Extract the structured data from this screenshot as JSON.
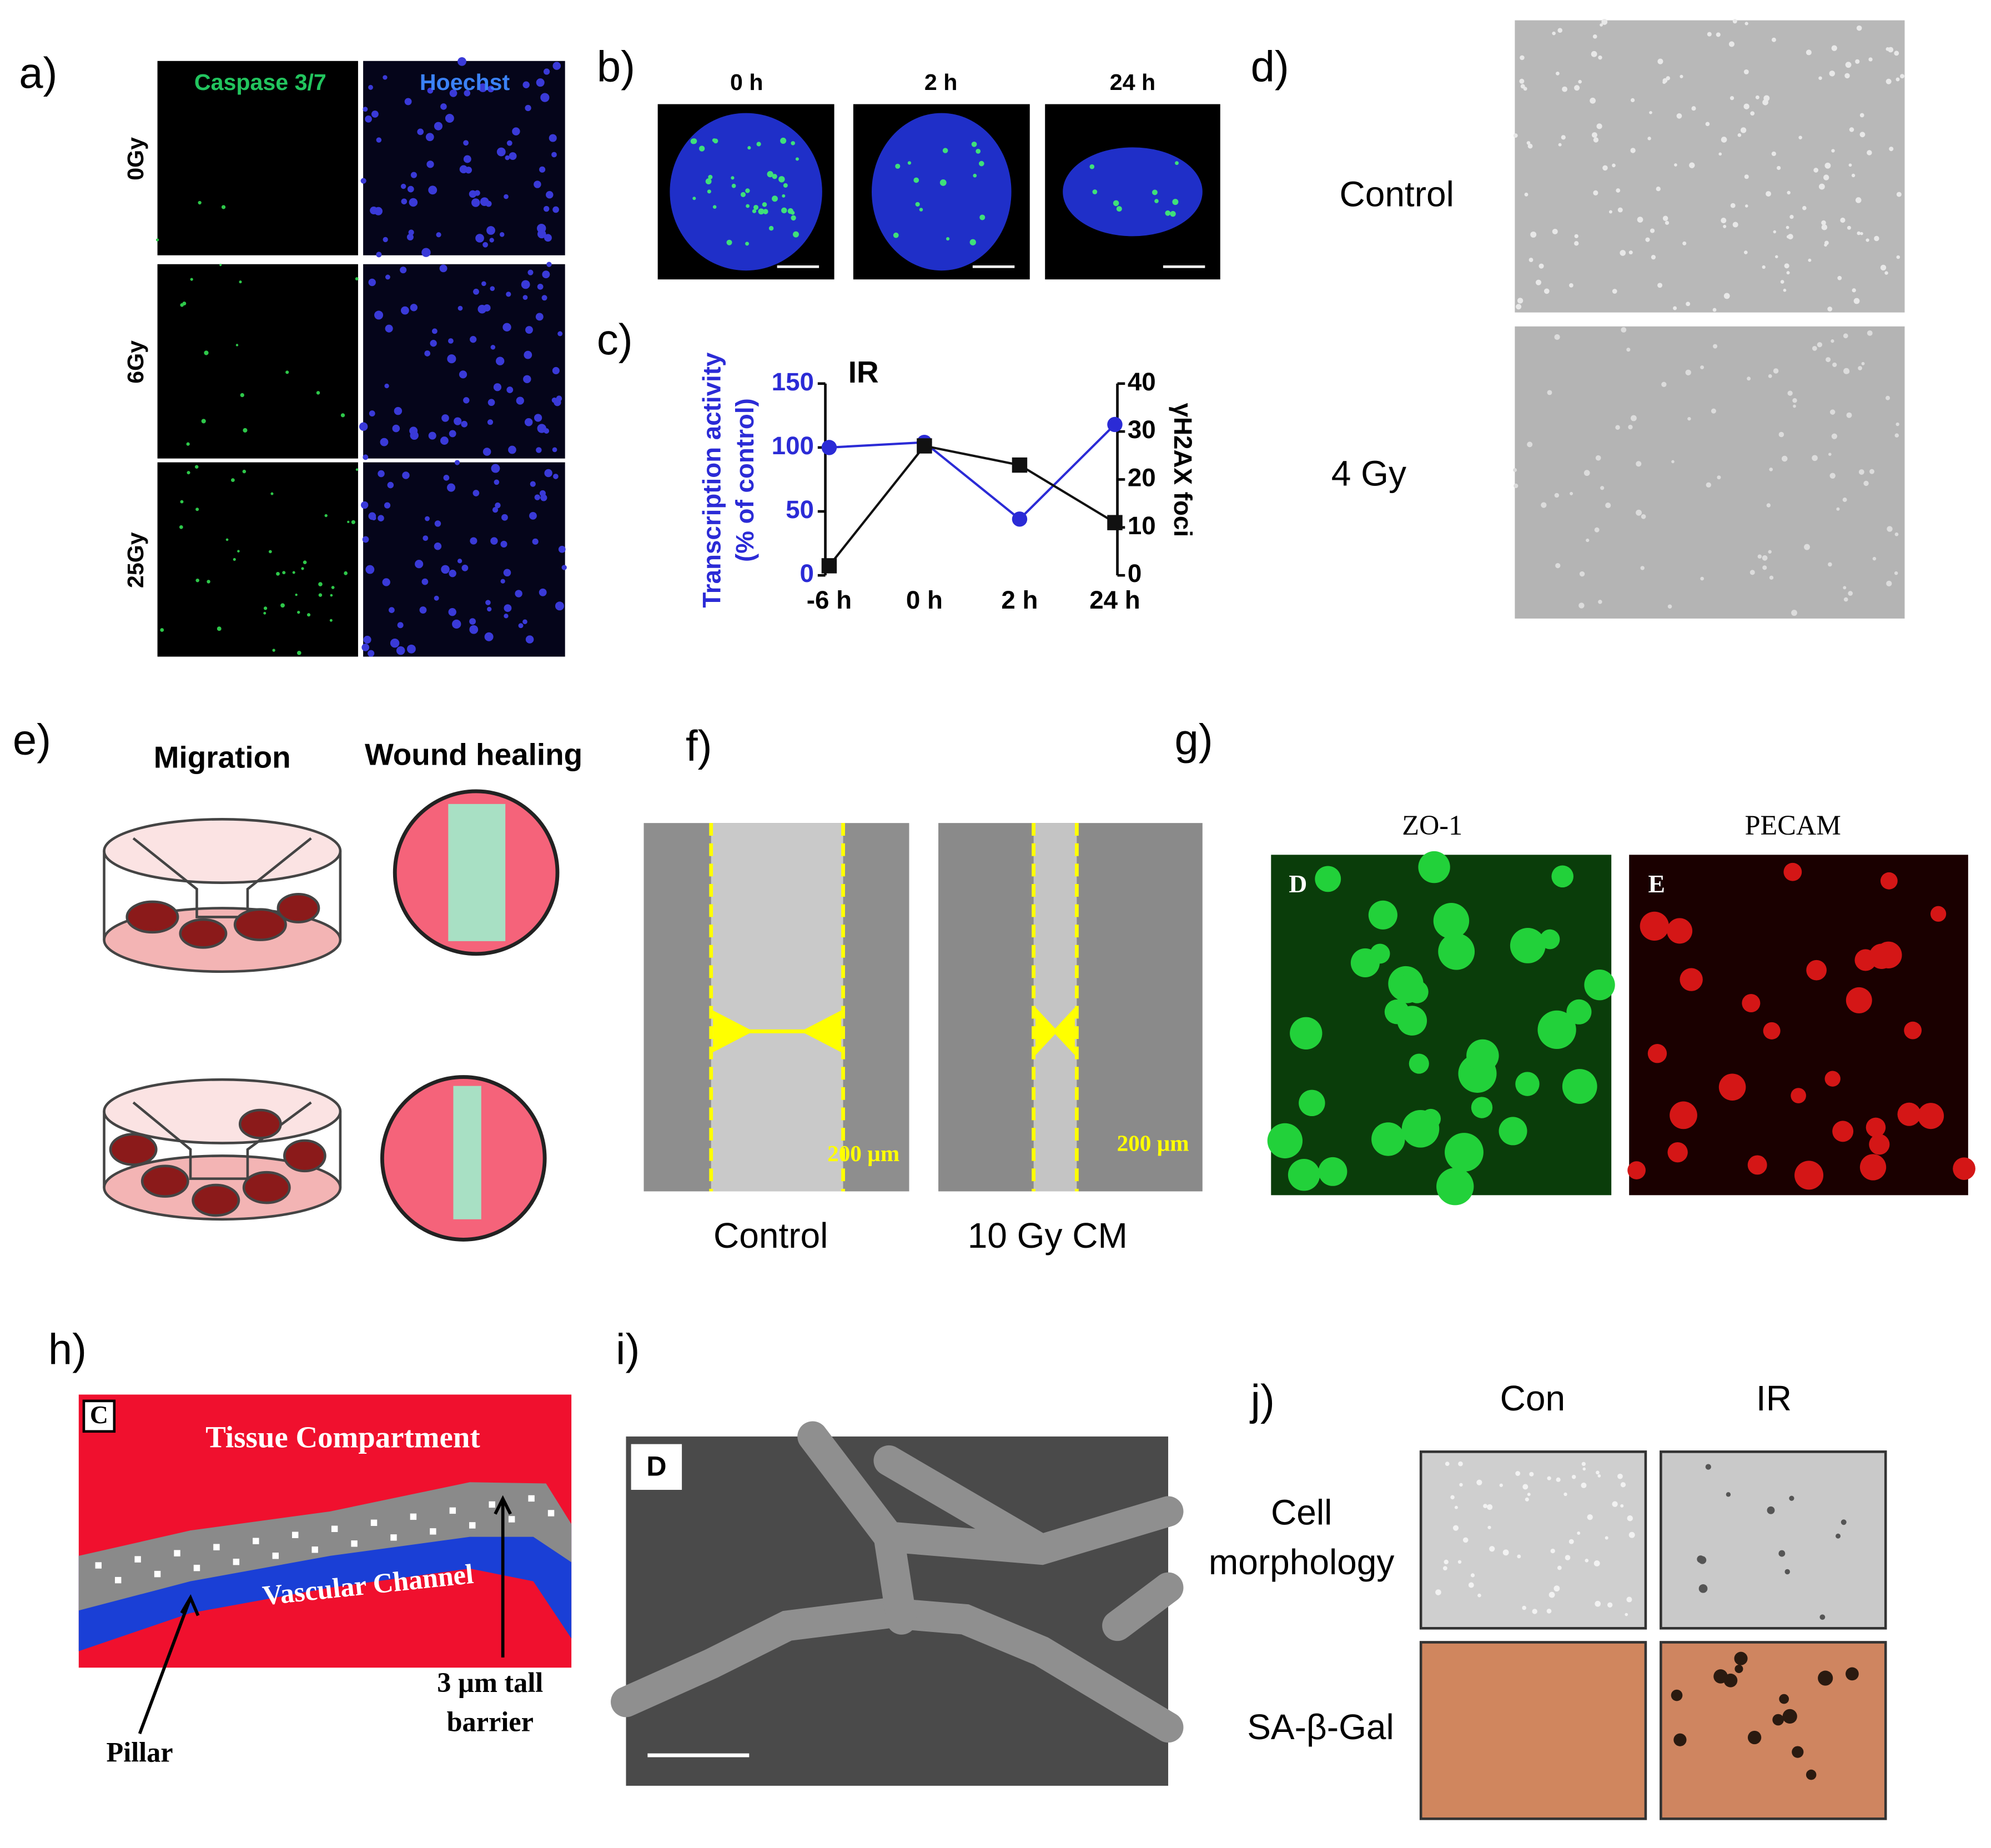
{
  "panels": {
    "a": {
      "label": "a)",
      "columns": [
        "Caspase 3/7",
        "Hoechst"
      ],
      "rows": [
        "0Gy",
        "6Gy",
        "25Gy"
      ]
    },
    "b": {
      "label": "b)",
      "times": [
        "0 h",
        "2 h",
        "24 h"
      ]
    },
    "d": {
      "label": "d)",
      "rows": [
        "Control",
        "4 Gy"
      ]
    },
    "e": {
      "label": "e)",
      "columns": [
        "Migration",
        "Wound healing"
      ]
    },
    "f": {
      "label": "f)",
      "columns": [
        "Control",
        "10 Gy CM"
      ],
      "scale_bars": [
        "200 µm",
        "200 µm"
      ]
    },
    "g": {
      "label": "g)",
      "columns": [
        "ZO-1",
        "PECAM"
      ],
      "insets": [
        "D",
        "E"
      ]
    },
    "h": {
      "label": "h)",
      "inset": "C",
      "texts": [
        "Tissue Compartment",
        "Vascular Channel",
        "Pillar",
        "3 µm tall",
        "barrier"
      ]
    },
    "i": {
      "label": "i)",
      "inset": "D"
    },
    "j": {
      "label": "j)",
      "columns": [
        "Con",
        "IR"
      ],
      "rows": [
        [
          "Cell",
          "morphology"
        ],
        [
          "SA-β-Gal"
        ]
      ]
    }
  },
  "chart_data": {
    "type": "line",
    "label": "c)",
    "annotation": "IR",
    "ylabel": [
      "Transcription activity",
      "(% of control)"
    ],
    "y2label": "γH2AX foci",
    "categories": [
      "-6 h",
      "0 h",
      "2 h",
      "24 h"
    ],
    "series": [
      {
        "color": "#2b2bd6",
        "values": [
          100,
          104,
          44,
          118
        ]
      },
      {
        "color": "#111111",
        "values": [
          2,
          27,
          23,
          11
        ],
        "axis": "y2"
      }
    ],
    "ylim": [
      0,
      150
    ],
    "yticks": [
      0,
      50,
      100,
      150
    ],
    "y2lim": [
      0,
      40
    ],
    "y2ticks": [
      0,
      10,
      20,
      30,
      40
    ]
  }
}
